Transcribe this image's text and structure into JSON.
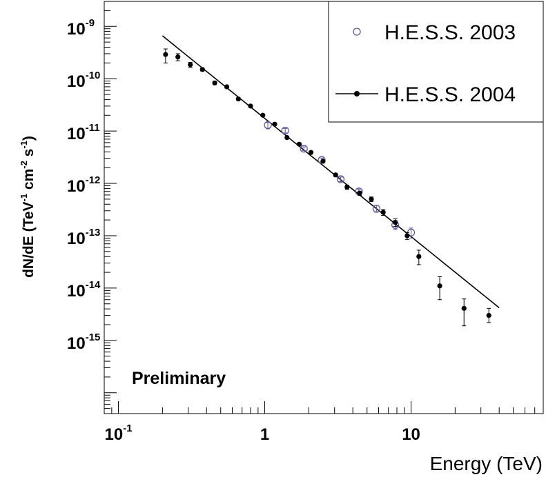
{
  "chart_data": {
    "type": "scatter",
    "xlabel": "Energy (TeV)",
    "ylabel": {
      "base": "dN/dE (TeV",
      "exp1": "-1",
      "mid": " cm",
      "exp2": "-2",
      "mid2": " s",
      "exp3": "-1",
      "close": ")"
    },
    "x_scale": "log",
    "y_scale": "log",
    "xlim": [
      0.08,
      80
    ],
    "ylim": [
      4e-17,
      3e-09
    ],
    "x_ticks": [
      {
        "value": 0.1,
        "base": "10",
        "exp": "-1"
      },
      {
        "value": 1,
        "base": "1",
        "exp": ""
      },
      {
        "value": 10,
        "base": "10",
        "exp": ""
      }
    ],
    "y_ticks": [
      {
        "value": 1e-09,
        "base": "10",
        "exp": "-9"
      },
      {
        "value": 1e-10,
        "base": "10",
        "exp": "-10"
      },
      {
        "value": 1e-11,
        "base": "10",
        "exp": "-11"
      },
      {
        "value": 1e-12,
        "base": "10",
        "exp": "-12"
      },
      {
        "value": 1e-13,
        "base": "10",
        "exp": "-13"
      },
      {
        "value": 1e-14,
        "base": "10",
        "exp": "-14"
      },
      {
        "value": 1e-15,
        "base": "10",
        "exp": "-15"
      }
    ],
    "annotation": "Preliminary",
    "legend_position": "top-right",
    "series": [
      {
        "name": "H.E.S.S. 2003",
        "marker": "open-circle",
        "color": "#5a5a9a",
        "points": [
          {
            "x": 1.05,
            "y": 1.3e-11,
            "lo": 1.1e-11,
            "hi": 1.45e-11
          },
          {
            "x": 1.38,
            "y": 1.02e-11,
            "lo": 9.2e-12,
            "hi": 1.12e-11
          },
          {
            "x": 1.85,
            "y": 4.6e-12,
            "lo": 4.2e-12,
            "hi": 5e-12
          },
          {
            "x": 2.45,
            "y": 2.8e-12,
            "lo": 2.55e-12,
            "hi": 3.05e-12
          },
          {
            "x": 3.3,
            "y": 1.2e-12,
            "lo": 1.08e-12,
            "hi": 1.32e-12
          },
          {
            "x": 4.4,
            "y": 7e-13,
            "lo": 6.2e-13,
            "hi": 7.8e-13
          },
          {
            "x": 5.8,
            "y": 3.3e-13,
            "lo": 2.8e-13,
            "hi": 3.8e-13
          },
          {
            "x": 7.8,
            "y": 1.6e-13,
            "lo": 1.3e-13,
            "hi": 1.95e-13
          },
          {
            "x": 10.0,
            "y": 1.15e-13,
            "lo": 9e-14,
            "hi": 1.4e-13
          }
        ]
      },
      {
        "name": "H.E.S.S. 2004",
        "marker": "filled-circle",
        "color": "#000000",
        "points": [
          {
            "x": 0.21,
            "y": 2.9e-10,
            "lo": 2e-10,
            "hi": 3.7e-10
          },
          {
            "x": 0.255,
            "y": 2.6e-10,
            "lo": 2.2e-10,
            "hi": 3e-10
          },
          {
            "x": 0.31,
            "y": 1.85e-10,
            "lo": 1.65e-10,
            "hi": 2.05e-10
          },
          {
            "x": 0.375,
            "y": 1.5e-10,
            "lo": 1.4e-10,
            "hi": 1.6e-10
          },
          {
            "x": 0.455,
            "y": 8.3e-11,
            "lo": 7.7e-11,
            "hi": 8.9e-11
          },
          {
            "x": 0.55,
            "y": 7e-11,
            "lo": 6.6e-11,
            "hi": 7.4e-11
          },
          {
            "x": 0.66,
            "y": 4.1e-11,
            "lo": 3.9e-11,
            "hi": 4.3e-11
          },
          {
            "x": 0.8,
            "y": 3e-11,
            "lo": 2.85e-11,
            "hi": 3.15e-11
          },
          {
            "x": 0.97,
            "y": 2e-11,
            "lo": 1.9e-11,
            "hi": 2.1e-11
          },
          {
            "x": 1.17,
            "y": 1.35e-11,
            "lo": 1.28e-11,
            "hi": 1.42e-11
          },
          {
            "x": 1.42,
            "y": 7.5e-12,
            "lo": 7.1e-12,
            "hi": 7.9e-12
          },
          {
            "x": 1.72,
            "y": 5.6e-12,
            "lo": 5.3e-12,
            "hi": 5.9e-12
          },
          {
            "x": 2.07,
            "y": 3.9e-12,
            "lo": 3.7e-12,
            "hi": 4.1e-12
          },
          {
            "x": 2.5,
            "y": 2.65e-12,
            "lo": 2.5e-12,
            "hi": 2.8e-12
          },
          {
            "x": 3.05,
            "y": 1.45e-12,
            "lo": 1.35e-12,
            "hi": 1.55e-12
          },
          {
            "x": 3.65,
            "y": 8.5e-13,
            "lo": 7.7e-13,
            "hi": 9.3e-13
          },
          {
            "x": 4.45,
            "y": 6.5e-13,
            "lo": 5.9e-13,
            "hi": 7.1e-13
          },
          {
            "x": 5.35,
            "y": 5e-13,
            "lo": 4.5e-13,
            "hi": 5.5e-13
          },
          {
            "x": 6.45,
            "y": 2.8e-13,
            "lo": 2.45e-13,
            "hi": 3.15e-13
          },
          {
            "x": 7.8,
            "y": 1.8e-13,
            "lo": 1.5e-13,
            "hi": 2.1e-13
          },
          {
            "x": 9.4,
            "y": 1e-13,
            "lo": 8.5e-14,
            "hi": 1.15e-13
          },
          {
            "x": 11.3,
            "y": 4e-14,
            "lo": 2.8e-14,
            "hi": 5.3e-14
          },
          {
            "x": 15.7,
            "y": 1.1e-14,
            "lo": 6e-15,
            "hi": 1.65e-14
          },
          {
            "x": 23.0,
            "y": 4.1e-15,
            "lo": 1.9e-15,
            "hi": 6.2e-15
          },
          {
            "x": 34.0,
            "y": 3e-15,
            "lo": 2.2e-15,
            "hi": 4.1e-15
          }
        ]
      }
    ],
    "fit_line": {
      "series": "H.E.S.S. 2004",
      "points": [
        {
          "x": 0.2,
          "y": 6.6e-10
        },
        {
          "x": 40.0,
          "y": 4.2e-15
        }
      ]
    }
  }
}
